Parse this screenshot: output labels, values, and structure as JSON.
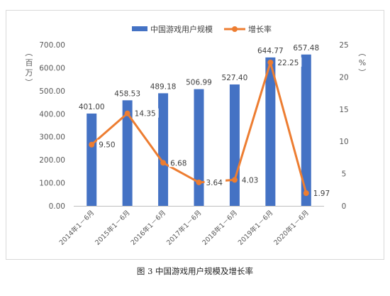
{
  "chart_data": {
    "type": "bar+line",
    "categories": [
      "2014年1－6月",
      "2015年1－6月",
      "2016年1－6月",
      "2017年1－6月",
      "2018年1－6月",
      "2019年1－6月",
      "2020年1－6月"
    ],
    "series": [
      {
        "name": "中国游戏用户规模",
        "type": "bar",
        "axis": "left",
        "color": "#4472C4",
        "values": [
          401.0,
          458.53,
          489.18,
          506.99,
          527.4,
          644.77,
          657.48
        ],
        "labels": [
          "401.00",
          "458.53",
          "489.18",
          "506.99",
          "527.40",
          "644.77",
          "657.48"
        ]
      },
      {
        "name": "增长率",
        "type": "line",
        "axis": "right",
        "color": "#ED7D31",
        "values": [
          9.5,
          14.35,
          6.68,
          3.64,
          4.03,
          22.25,
          1.97
        ],
        "labels": [
          "9.50",
          "14.35",
          "6.68",
          "3.64",
          "4.03",
          "22.25",
          "1.97"
        ]
      }
    ],
    "y_left": {
      "label": "（百万）",
      "ticks": [
        "0.00",
        "100.00",
        "200.00",
        "300.00",
        "400.00",
        "500.00",
        "600.00",
        "700.00"
      ],
      "ylim": [
        0,
        700
      ]
    },
    "y_right": {
      "label": "（%）",
      "ticks": [
        "0",
        "5",
        "10",
        "15",
        "20",
        "25"
      ],
      "ylim": [
        0,
        25
      ]
    },
    "legend_position": "top",
    "grid": false
  },
  "caption": "图 3 中国游戏用户规模及增长率"
}
